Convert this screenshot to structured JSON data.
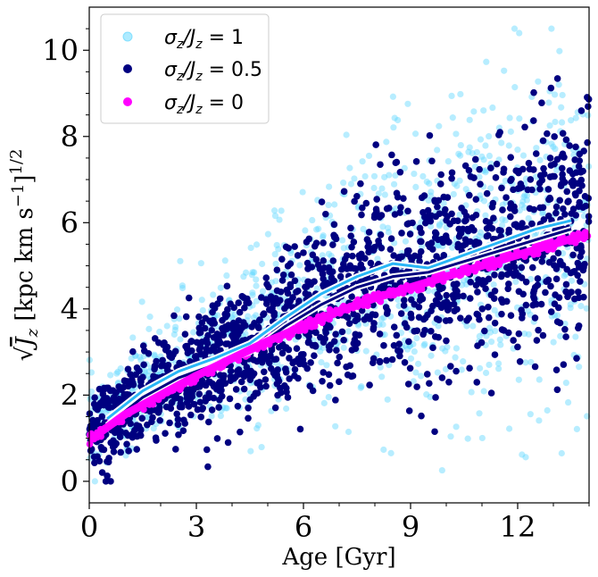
{
  "chart_data": {
    "type": "scatter",
    "xlabel": "Age [Gyr]",
    "ylabel": "√J_z [kpc km s⁻¹]^1/2",
    "ylabel_parts": {
      "root": "√",
      "var": "J",
      "sub": "z",
      "units": " [kpc km s",
      "exp": "−1",
      "close": "]",
      "power": "1/2"
    },
    "xlim": [
      0,
      14
    ],
    "ylim": [
      -0.5,
      11
    ],
    "xticks": [
      0,
      3,
      6,
      9,
      12
    ],
    "yticks": [
      0,
      2,
      4,
      6,
      8,
      10
    ],
    "grid": false,
    "legend_position": "top-left",
    "series": [
      {
        "name": "σ_z/J_z = 1",
        "label_parts": {
          "a": "σ",
          "a_sub": "z",
          "slash": "/",
          "b": "J",
          "b_sub": "z",
          "eq": " = 1"
        },
        "color": "#5fd7ff",
        "alpha": 0.45,
        "trend": {
          "x": [
            0.5,
            1.5,
            2.5,
            3.5,
            4.5,
            5.5,
            6.5,
            7.5,
            8.5,
            9.5,
            10.5,
            11.5,
            12.5,
            13.5
          ],
          "y": [
            1.45,
            2.1,
            2.55,
            2.85,
            3.2,
            3.8,
            4.35,
            4.75,
            5.05,
            4.95,
            5.25,
            5.55,
            5.85,
            6.05
          ]
        }
      },
      {
        "name": "σ_z/J_z = 0.5",
        "label_parts": {
          "a": "σ",
          "a_sub": "z",
          "slash": "/",
          "b": "J",
          "b_sub": "z",
          "eq": " = 0.5"
        },
        "color": "#000080",
        "alpha": 1.0,
        "trend": {
          "x": [
            0.5,
            1.5,
            2.5,
            3.5,
            4.5,
            5.5,
            6.5,
            7.5,
            8.5,
            9.5,
            10.5,
            11.5,
            12.5,
            13.5
          ],
          "y": [
            1.3,
            1.95,
            2.4,
            2.7,
            3.0,
            3.6,
            4.1,
            4.5,
            4.75,
            4.85,
            5.1,
            5.35,
            5.6,
            5.85
          ]
        }
      },
      {
        "name": "σ_z/J_z = 0",
        "label_parts": {
          "a": "σ",
          "a_sub": "z",
          "slash": "/",
          "b": "J",
          "b_sub": "z",
          "eq": " = 0"
        },
        "color": "#ff00ff",
        "alpha": 1.0,
        "trend": {
          "x": [
            0,
            1,
            2,
            3,
            4,
            5,
            6,
            7,
            8,
            9,
            10,
            11,
            12,
            13,
            14
          ],
          "y": [
            0.95,
            1.55,
            2.0,
            2.45,
            2.85,
            3.25,
            3.6,
            3.95,
            4.25,
            4.5,
            4.75,
            5.0,
            5.25,
            5.5,
            5.75
          ]
        }
      }
    ]
  }
}
